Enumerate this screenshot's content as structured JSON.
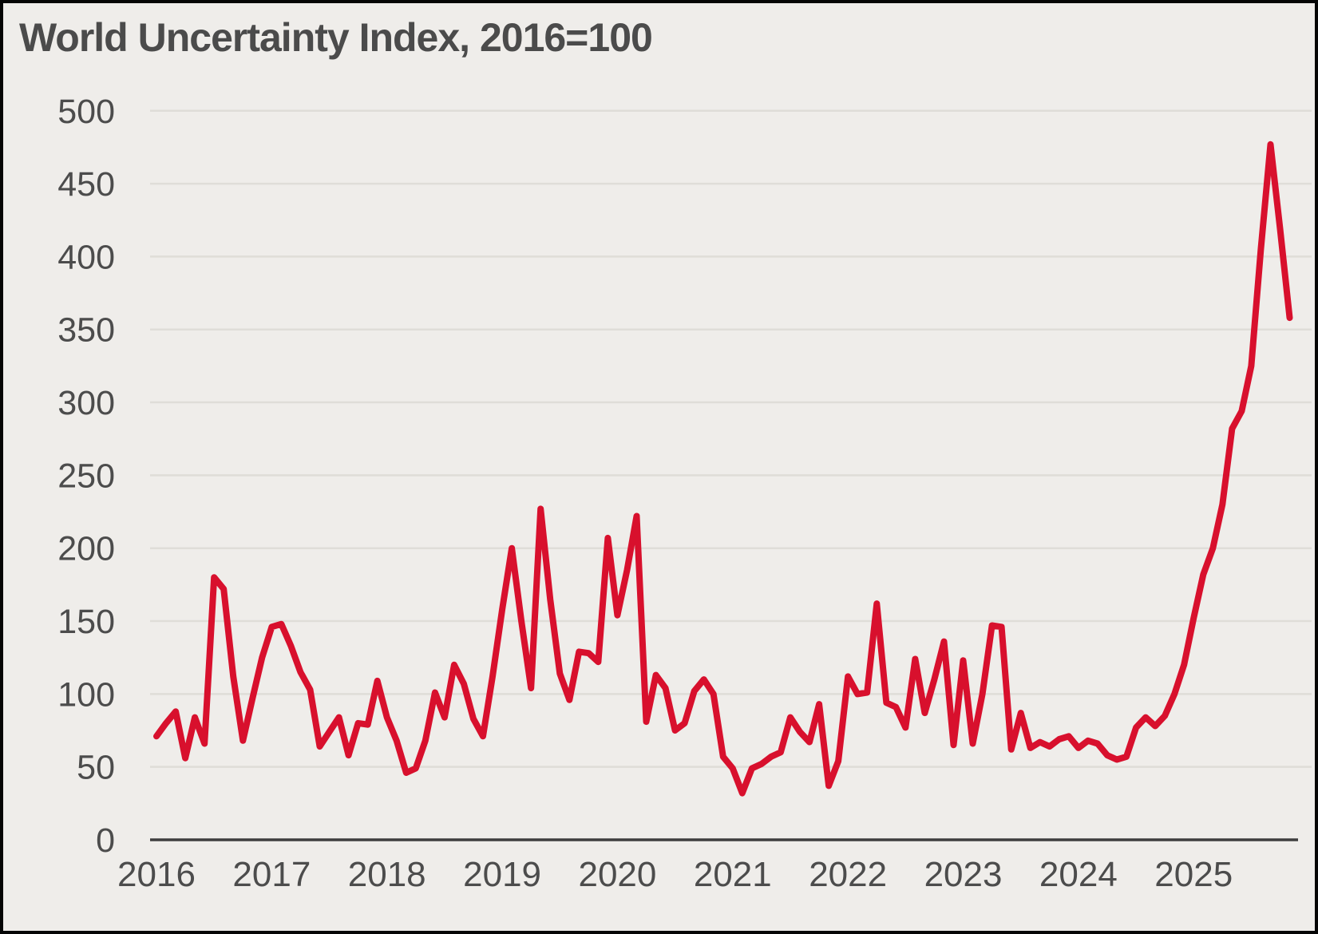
{
  "page": {
    "background_color": "#efedea",
    "frame_border_color": "#050505"
  },
  "chart_data": {
    "type": "line",
    "title": "World Uncertainty Index, 2016=100",
    "series_name": "World Uncertainty Index",
    "frequency": "monthly",
    "start_period": "2016-01",
    "end_period": "2025-11",
    "x_tick_labels": [
      "2016",
      "2017",
      "2018",
      "2019",
      "2020",
      "2021",
      "2022",
      "2023",
      "2024",
      "2025"
    ],
    "y_ticks": [
      0,
      50,
      100,
      150,
      200,
      250,
      300,
      350,
      400,
      450,
      500
    ],
    "ylim": [
      0,
      500
    ],
    "grid": true,
    "legend": "none",
    "line_color": "#d8102d",
    "axis_color": "#3e3e3e",
    "gridline_color": "#dfddd8",
    "label_color": "#4c4c4c",
    "values": [
      71,
      80,
      88,
      56,
      84,
      66,
      180,
      172,
      112,
      68,
      97,
      125,
      146,
      148,
      133,
      115,
      103,
      64,
      74,
      84,
      58,
      80,
      79,
      109,
      84,
      68,
      46,
      49,
      68,
      101,
      84,
      120,
      107,
      83,
      71,
      112,
      158,
      200,
      150,
      104,
      227,
      165,
      114,
      96,
      129,
      128,
      122,
      207,
      154,
      185,
      222,
      81,
      113,
      104,
      75,
      80,
      102,
      110,
      100,
      57,
      49,
      32,
      49,
      52,
      57,
      60,
      84,
      74,
      67,
      93,
      37,
      54,
      112,
      100,
      101,
      162,
      94,
      91,
      77,
      124,
      87,
      110,
      136,
      65,
      123,
      66,
      100,
      147,
      146,
      62,
      87,
      63,
      67,
      64,
      69,
      71,
      63,
      68,
      66,
      58,
      55,
      57,
      77,
      84,
      78,
      85,
      100,
      120,
      152,
      182,
      200,
      230,
      282,
      294,
      325,
      405,
      477,
      419,
      358
    ]
  }
}
